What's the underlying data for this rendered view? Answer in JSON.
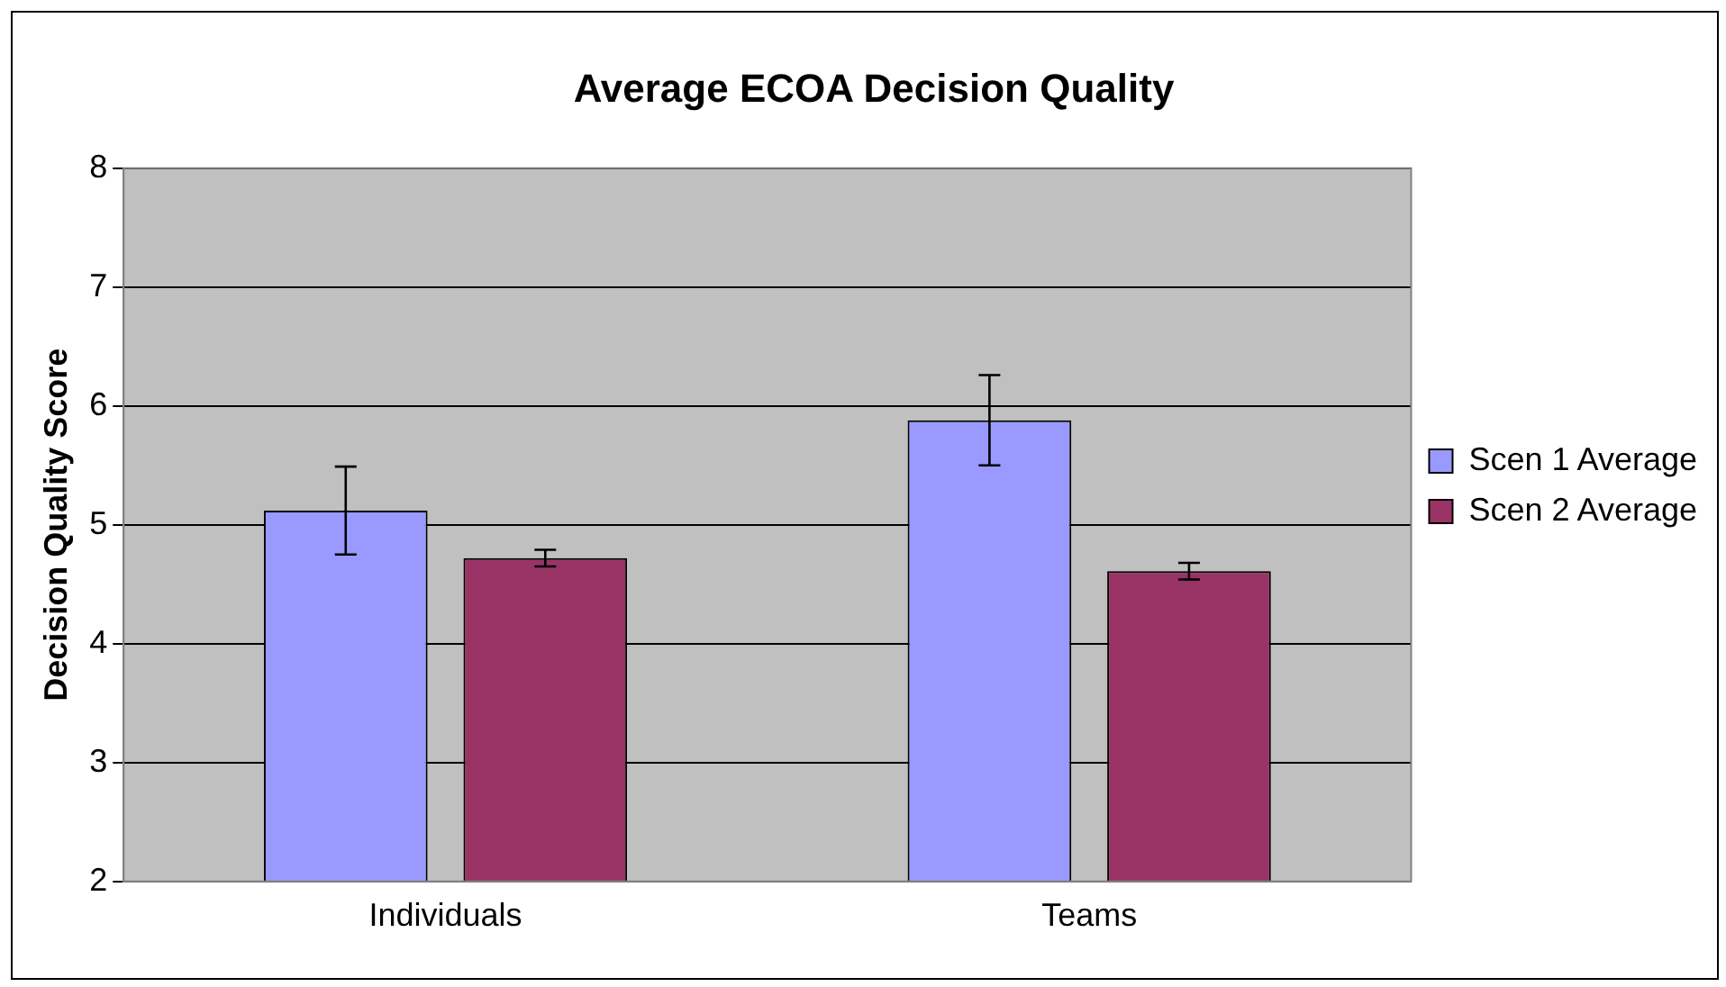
{
  "chart_data": {
    "type": "bar",
    "title": "Average ECOA Decision Quality",
    "ylabel": "Decision Quality Score",
    "categories": [
      "Individuals",
      "Teams"
    ],
    "series": [
      {
        "name": "Scen 1 Average",
        "color": "#9999ff",
        "values": [
          5.12,
          5.88
        ],
        "errors": [
          0.37,
          0.38
        ]
      },
      {
        "name": "Scen 2 Average",
        "color": "#993366",
        "values": [
          4.72,
          4.61
        ],
        "errors": [
          0.07,
          0.07
        ]
      }
    ],
    "ylim": [
      2,
      8
    ],
    "yticks": [
      2,
      3,
      4,
      5,
      6,
      7,
      8
    ],
    "grid": "y",
    "legend": "right"
  }
}
